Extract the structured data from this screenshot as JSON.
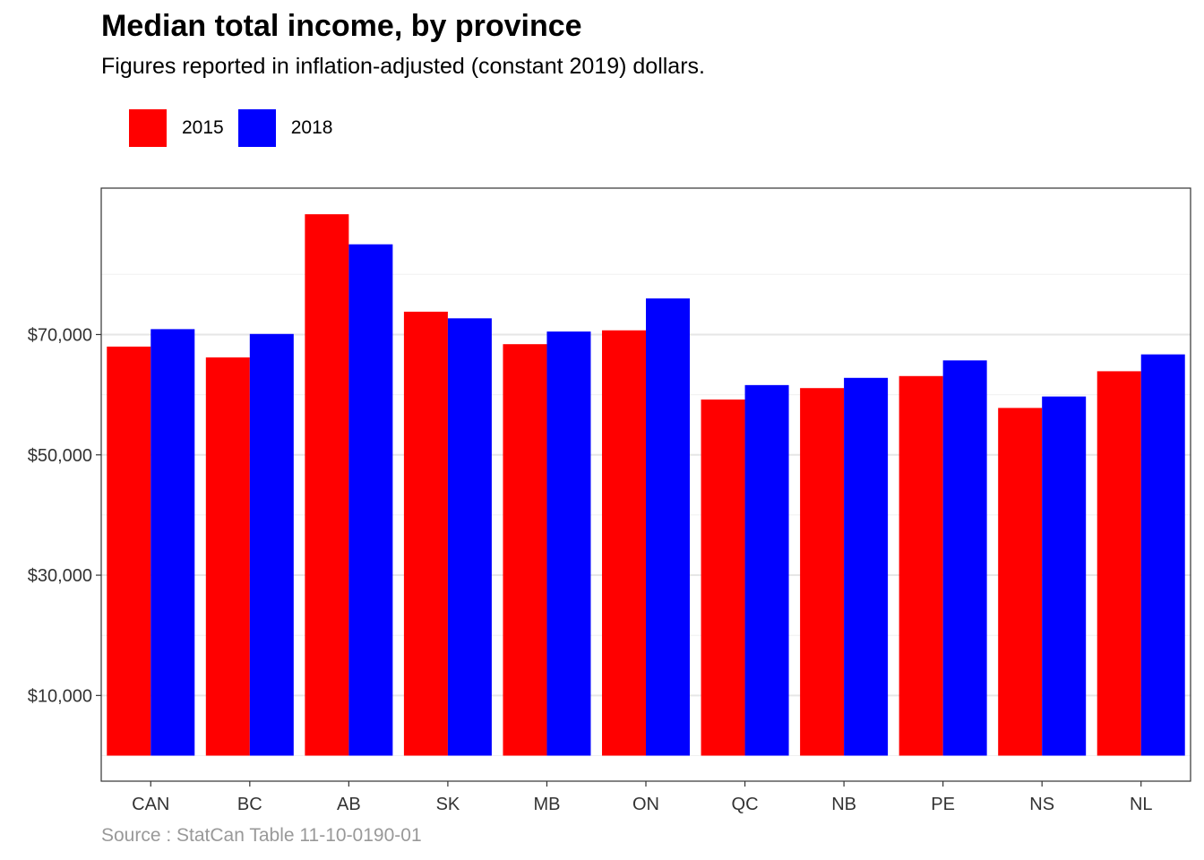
{
  "chart_data": {
    "type": "bar",
    "title": "Median total income, by province",
    "subtitle": "Figures reported in inflation-adjusted (constant 2019) dollars.",
    "caption": "Source : StatCan Table 11-10-0190-01",
    "categories": [
      "CAN",
      "BC",
      "AB",
      "SK",
      "MB",
      "ON",
      "QC",
      "NB",
      "PE",
      "NS",
      "NL"
    ],
    "series": [
      {
        "name": "2015",
        "color": "#ff0000",
        "values": [
          68000,
          66200,
          90000,
          73800,
          68400,
          70700,
          59200,
          61100,
          63100,
          57800,
          63900
        ]
      },
      {
        "name": "2018",
        "color": "#0000ff",
        "values": [
          70900,
          70100,
          85000,
          72700,
          70500,
          76000,
          61600,
          62800,
          65700,
          59700,
          66700
        ]
      }
    ],
    "yticks": [
      10000,
      30000,
      50000,
      70000
    ],
    "ytick_labels": [
      "$10,000",
      "$30,000",
      "$50,000",
      "$70,000"
    ],
    "ylim": [
      0,
      94600
    ],
    "xlabel": "",
    "ylabel": "",
    "grid": true,
    "legend_position": "top-left"
  }
}
